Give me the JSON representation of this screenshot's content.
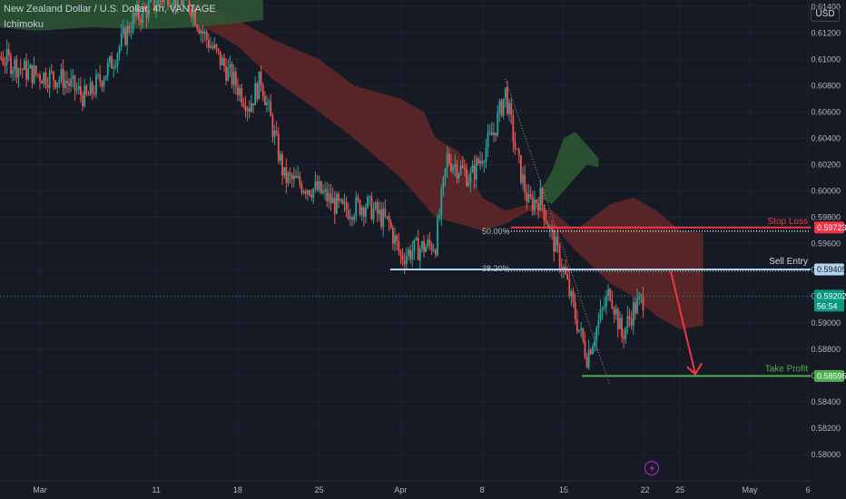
{
  "header": {
    "symbol_title": "New Zealand Dollar / U.S. Dollar, 4h, VANTAGE",
    "indicator": "Ichimoku",
    "currency_button": "USD"
  },
  "colors": {
    "background": "#161a25",
    "bull": "#26a69a",
    "bear": "#ef5350",
    "cloud_bear": "#6e2a2a",
    "cloud_bull": "#2d5a34",
    "stop_loss": "#f23645",
    "sell_entry": "#b2d3ee",
    "take_profit": "#4caf50",
    "current_price": "#089981",
    "arrow": "#f23645"
  },
  "chart_data": {
    "type": "candlestick",
    "title": "New Zealand Dollar / U.S. Dollar, 4h, VANTAGE",
    "indicator": "Ichimoku",
    "y_axis": {
      "min": 0.578,
      "max": 0.6145,
      "tick_labels": [
        "0.61400",
        "0.61200",
        "0.61000",
        "0.60800",
        "0.60600",
        "0.60400",
        "0.60200",
        "0.60000",
        "0.59800",
        "0.59600",
        "0.59400",
        "0.59200",
        "0.59000",
        "0.58800",
        "0.58600",
        "0.58400",
        "0.58200",
        "0.58000"
      ]
    },
    "x_axis": {
      "tick_labels": [
        "Mar",
        "11",
        "18",
        "25",
        "Apr",
        "8",
        "15",
        "22",
        "25",
        "May",
        "6"
      ]
    },
    "price_path_anchors": [
      {
        "date": "Feb 26",
        "price": 0.6105
      },
      {
        "date": "Feb 29",
        "price": 0.609
      },
      {
        "date": "Mar 3",
        "price": 0.6085
      },
      {
        "date": "Mar 5",
        "price": 0.607
      },
      {
        "date": "Mar 7",
        "price": 0.6095
      },
      {
        "date": "Mar 9",
        "price": 0.613
      },
      {
        "date": "Mar 12",
        "price": 0.615
      },
      {
        "date": "Mar 14",
        "price": 0.614
      },
      {
        "date": "Mar 15",
        "price": 0.612
      },
      {
        "date": "Mar 19",
        "price": 0.6065
      },
      {
        "date": "Mar 20",
        "price": 0.6085
      },
      {
        "date": "Mar 22",
        "price": 0.601
      },
      {
        "date": "Mar 25",
        "price": 0.6
      },
      {
        "date": "Mar 27",
        "price": 0.5985
      },
      {
        "date": "Mar 29",
        "price": 0.599
      },
      {
        "date": "Mar 31",
        "price": 0.5975
      },
      {
        "date": "Apr 1",
        "price": 0.595
      },
      {
        "date": "Apr 2",
        "price": 0.5955
      },
      {
        "date": "Apr 4",
        "price": 0.596
      },
      {
        "date": "Apr 5",
        "price": 0.6025
      },
      {
        "date": "Apr 7",
        "price": 0.601
      },
      {
        "date": "Apr 9",
        "price": 0.6045
      },
      {
        "date": "Apr 10",
        "price": 0.6075
      },
      {
        "date": "Apr 11",
        "price": 0.6025
      },
      {
        "date": "Apr 12",
        "price": 0.599
      },
      {
        "date": "Apr 13",
        "price": 0.5995
      },
      {
        "date": "Apr 14",
        "price": 0.5965
      },
      {
        "date": "Apr 15",
        "price": 0.594
      },
      {
        "date": "Apr 16",
        "price": 0.5905
      },
      {
        "date": "Apr 17",
        "price": 0.5875
      },
      {
        "date": "Apr 18",
        "price": 0.59
      },
      {
        "date": "Apr 19",
        "price": 0.5925
      },
      {
        "date": "Apr 20",
        "price": 0.589
      },
      {
        "date": "Apr 21",
        "price": 0.591
      },
      {
        "date": "Apr 22",
        "price": 0.592
      }
    ],
    "ichimoku_cloud": {
      "bearish_top": [
        {
          "date": "Mar 14",
          "price": 0.6148
        },
        {
          "date": "Mar 18",
          "price": 0.613
        },
        {
          "date": "Mar 21",
          "price": 0.6115
        },
        {
          "date": "Mar 25",
          "price": 0.61
        },
        {
          "date": "Mar 28",
          "price": 0.608
        },
        {
          "date": "Apr 1",
          "price": 0.607
        },
        {
          "date": "Apr 3",
          "price": 0.606
        },
        {
          "date": "Apr 4",
          "price": 0.604
        },
        {
          "date": "Apr 6",
          "price": 0.603
        },
        {
          "date": "Apr 8",
          "price": 0.5995
        },
        {
          "date": "Apr 10",
          "price": 0.5985
        },
        {
          "date": "Apr 12",
          "price": 0.599
        },
        {
          "date": "Apr 14",
          "price": 0.5985
        },
        {
          "date": "Apr 16",
          "price": 0.597
        },
        {
          "date": "Apr 19",
          "price": 0.599
        },
        {
          "date": "Apr 21",
          "price": 0.5995
        },
        {
          "date": "Apr 23",
          "price": 0.5985
        },
        {
          "date": "Apr 25",
          "price": 0.597
        },
        {
          "date": "Apr 27",
          "price": 0.5968
        }
      ],
      "bearish_bottom": [
        {
          "date": "Mar 14",
          "price": 0.613
        },
        {
          "date": "Mar 18",
          "price": 0.611
        },
        {
          "date": "Mar 21",
          "price": 0.6085
        },
        {
          "date": "Mar 25",
          "price": 0.606
        },
        {
          "date": "Mar 28",
          "price": 0.604
        },
        {
          "date": "Apr 1",
          "price": 0.601
        },
        {
          "date": "Apr 3",
          "price": 0.599
        },
        {
          "date": "Apr 4",
          "price": 0.598
        },
        {
          "date": "Apr 6",
          "price": 0.5975
        },
        {
          "date": "Apr 8",
          "price": 0.597
        },
        {
          "date": "Apr 10",
          "price": 0.5975
        },
        {
          "date": "Apr 12",
          "price": 0.5985
        },
        {
          "date": "Apr 14",
          "price": 0.5975
        },
        {
          "date": "Apr 16",
          "price": 0.5955
        },
        {
          "date": "Apr 19",
          "price": 0.593
        },
        {
          "date": "Apr 21",
          "price": 0.592
        },
        {
          "date": "Apr 23",
          "price": 0.5905
        },
        {
          "date": "Apr 25",
          "price": 0.5895
        },
        {
          "date": "Apr 27",
          "price": 0.5898
        }
      ],
      "bullish_patch": {
        "dates": [
          "Apr 13",
          "Apr 14",
          "Apr 15",
          "Apr 16",
          "Apr 17",
          "Apr 18"
        ],
        "top": [
          0.6,
          0.6015,
          0.604,
          0.6045,
          0.6035,
          0.6025
        ],
        "bottom": [
          0.5995,
          0.599,
          0.6,
          0.601,
          0.602,
          0.6018
        ]
      }
    },
    "fib_line": {
      "from": {
        "date": "Apr 10",
        "price": 0.6085
      },
      "to": {
        "date": "Apr 19",
        "price": 0.5852
      }
    }
  },
  "levels": {
    "stop_loss": {
      "label": "Stop Loss",
      "price": "0.59723",
      "value": 0.59723
    },
    "sell_entry": {
      "label": "Sell Entry",
      "price": "0.59405",
      "value": 0.59405
    },
    "take_profit": {
      "label": "Take Profit",
      "price": "0.58596",
      "value": 0.58596
    },
    "current": {
      "price": "0.59202",
      "countdown": "56:54",
      "value": 0.59202
    }
  },
  "fib_labels": {
    "level_50": "50.00%",
    "level_382": "38.20%"
  }
}
